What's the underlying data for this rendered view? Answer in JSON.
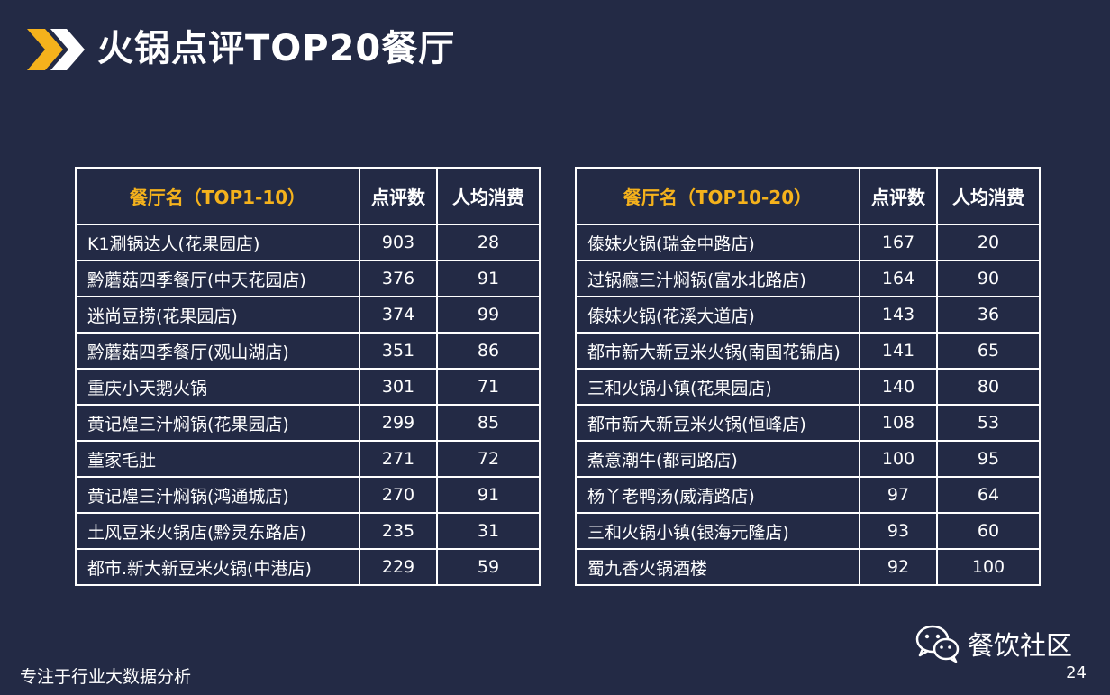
{
  "header": {
    "title": "火锅点评TOP20餐厅",
    "accent_color": "#f5b21c",
    "icon": "double-chevron-icon"
  },
  "columns": {
    "left_name": "餐厅名（TOP1-10）",
    "right_name": "餐厅名（TOP10-20）",
    "reviews": "点评数",
    "avg_spend": "人均消费"
  },
  "table_left": [
    {
      "name": "K1涮锅达人(花果园店)",
      "reviews": "903",
      "avg": "28"
    },
    {
      "name": "黔蘑菇四季餐厅(中天花园店)",
      "reviews": "376",
      "avg": "91"
    },
    {
      "name": "迷尚豆捞(花果园店)",
      "reviews": "374",
      "avg": "99"
    },
    {
      "name": "黔蘑菇四季餐厅(观山湖店)",
      "reviews": "351",
      "avg": "86"
    },
    {
      "name": "重庆小天鹅火锅",
      "reviews": "301",
      "avg": "71"
    },
    {
      "name": "黄记煌三汁焖锅(花果园店)",
      "reviews": "299",
      "avg": "85"
    },
    {
      "name": "董家毛肚",
      "reviews": "271",
      "avg": "72"
    },
    {
      "name": "黄记煌三汁焖锅(鸿通城店)",
      "reviews": "270",
      "avg": "91"
    },
    {
      "name": "土风豆米火锅店(黔灵东路店)",
      "reviews": "235",
      "avg": "31"
    },
    {
      "name": "都市.新大新豆米火锅(中港店)",
      "reviews": "229",
      "avg": "59"
    }
  ],
  "table_right": [
    {
      "name": "傣妹火锅(瑞金中路店)",
      "reviews": "167",
      "avg": "20"
    },
    {
      "name": "过锅瘾三汁焖锅(富水北路店)",
      "reviews": "164",
      "avg": "90"
    },
    {
      "name": "傣妹火锅(花溪大道店)",
      "reviews": "143",
      "avg": "36"
    },
    {
      "name": "都市新大新豆米火锅(南国花锦店)",
      "reviews": "141",
      "avg": "65"
    },
    {
      "name": "三和火锅小镇(花果园店)",
      "reviews": "140",
      "avg": "80"
    },
    {
      "name": "都市新大新豆米火锅(恒峰店)",
      "reviews": "108",
      "avg": "53"
    },
    {
      "name": "煮意潮牛(都司路店)",
      "reviews": "100",
      "avg": "95"
    },
    {
      "name": "杨丫老鸭汤(威清路店)",
      "reviews": "97",
      "avg": "64"
    },
    {
      "name": "三和火锅小镇(银海元隆店)",
      "reviews": "93",
      "avg": "60"
    },
    {
      "name": "蜀九香火锅酒楼",
      "reviews": "92",
      "avg": "100"
    }
  ],
  "footer": {
    "tagline": "专注于行业大数据分析",
    "brand": "餐饮社区",
    "brand_icon": "wechat-icon",
    "page_number": "24"
  }
}
